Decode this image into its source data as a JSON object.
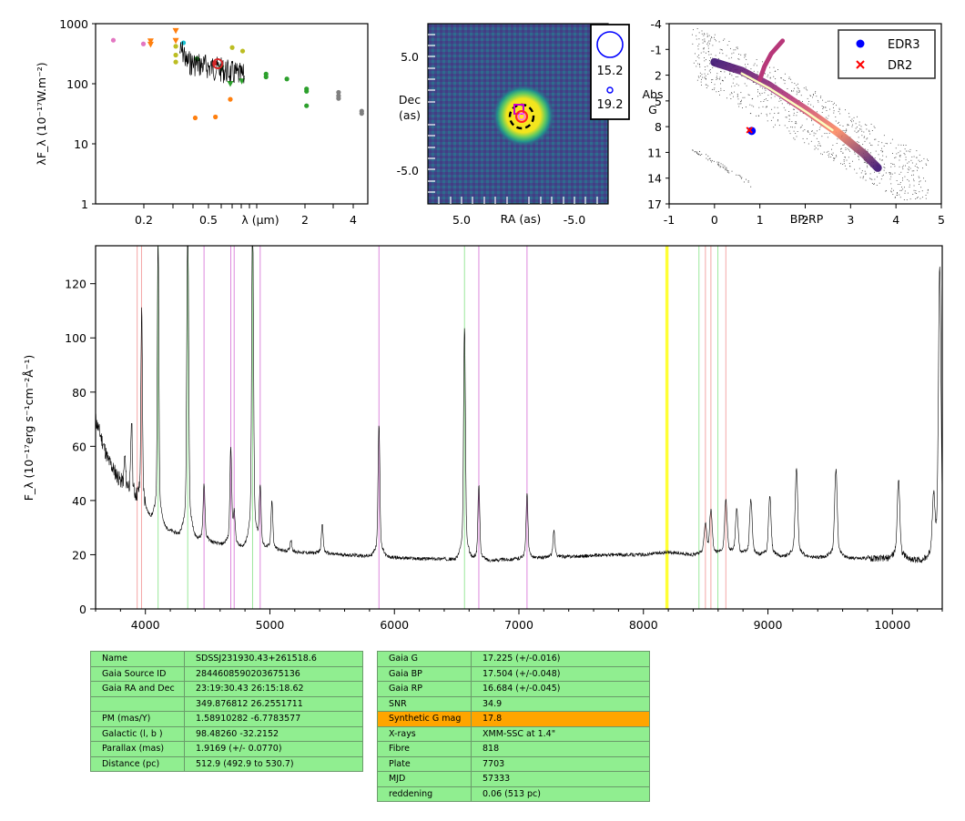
{
  "sed_panel": {
    "ylabel": "λF_λ (10⁻¹⁷W.m⁻²)",
    "xlabel": "λ (μm)",
    "y_ticks": [
      "1",
      "10",
      "100",
      "1000"
    ],
    "x_ticks": [
      "0.2",
      "0.5",
      "2",
      "4"
    ]
  },
  "image_panel": {
    "xlabel": "RA (as)",
    "ylabel_line1": "Dec",
    "ylabel_line2": "(as)",
    "x_ticks": [
      "5.0",
      "-5.0"
    ],
    "y_ticks": [
      "5.0",
      "-5.0"
    ],
    "mag_legend": [
      "15.2",
      "19.2"
    ]
  },
  "hr_panel": {
    "xlabel": "BP-RP",
    "ylabel_line1": "Abs",
    "ylabel_line2": "G",
    "x_ticks": [
      "-1",
      "0",
      "1",
      "2",
      "3",
      "4",
      "5"
    ],
    "y_ticks": [
      "-4",
      "-1",
      "2",
      "5",
      "8",
      "11",
      "14",
      "17"
    ],
    "legend": [
      {
        "label": "EDR3",
        "color": "#0000ff",
        "marker": "circle"
      },
      {
        "label": "DR2",
        "color": "#ff0000",
        "marker": "x"
      }
    ]
  },
  "spectrum_panel": {
    "ylabel": "F_λ (10⁻¹⁷erg s⁻¹cm⁻²Å⁻¹)",
    "x_ticks": [
      "4000",
      "5000",
      "6000",
      "7000",
      "8000",
      "9000",
      "10000"
    ],
    "y_ticks": [
      "0",
      "20",
      "40",
      "60",
      "80",
      "100",
      "120"
    ]
  },
  "colors": {
    "line_red": "#f4a6a6",
    "line_green": "#9be89b",
    "line_violet": "#dd88dd",
    "line_yellow": "#ffff33",
    "table_bg": "#90ee90",
    "table_hl": "#ffa500"
  },
  "chart_data": [
    {
      "type": "scatter",
      "xlabel": "λ (μm)",
      "ylabel": "λF_λ (10⁻¹⁷W.m⁻²)",
      "xscale": "log",
      "yscale": "log",
      "xlim": [
        0.12,
        5.0
      ],
      "ylim": [
        1,
        1000
      ],
      "points": [
        {
          "x": 0.153,
          "y": 530,
          "color": "#e377c2",
          "marker": "o"
        },
        {
          "x": 0.231,
          "y": 460,
          "color": "#e377c2",
          "marker": "o"
        },
        {
          "x": 0.255,
          "y": 510,
          "color": "#ff7f0e",
          "marker": "v"
        },
        {
          "x": 0.255,
          "y": 450,
          "color": "#ff7f0e",
          "marker": "v"
        },
        {
          "x": 0.36,
          "y": 760,
          "color": "#ff7f0e",
          "marker": "v"
        },
        {
          "x": 0.36,
          "y": 520,
          "color": "#ff7f0e",
          "marker": "v"
        },
        {
          "x": 0.36,
          "y": 420,
          "color": "#bcbd22",
          "marker": "o"
        },
        {
          "x": 0.36,
          "y": 300,
          "color": "#bcbd22",
          "marker": "o"
        },
        {
          "x": 0.36,
          "y": 230,
          "color": "#bcbd22",
          "marker": "o"
        },
        {
          "x": 0.4,
          "y": 480,
          "color": "#17becf",
          "marker": "o"
        },
        {
          "x": 0.47,
          "y": 27,
          "color": "#ff7f0e",
          "marker": "o"
        },
        {
          "x": 0.62,
          "y": 28,
          "color": "#ff7f0e",
          "marker": "o"
        },
        {
          "x": 0.48,
          "y": 260,
          "color": "#2ca02c",
          "marker": "o"
        },
        {
          "x": 0.62,
          "y": 220,
          "color": "#d62728",
          "marker": "o"
        },
        {
          "x": 0.67,
          "y": 180,
          "color": "#2ca02c",
          "marker": "v"
        },
        {
          "x": 0.76,
          "y": 55,
          "color": "#ff7f0e",
          "marker": "o"
        },
        {
          "x": 0.76,
          "y": 100,
          "color": "#2ca02c",
          "marker": "v"
        },
        {
          "x": 0.89,
          "y": 110,
          "color": "#2ca02c",
          "marker": "v"
        },
        {
          "x": 0.78,
          "y": 400,
          "color": "#bcbd22",
          "marker": "o"
        },
        {
          "x": 0.9,
          "y": 350,
          "color": "#bcbd22",
          "marker": "o"
        },
        {
          "x": 1.24,
          "y": 145,
          "color": "#2ca02c",
          "marker": "o"
        },
        {
          "x": 1.24,
          "y": 130,
          "color": "#2ca02c",
          "marker": "o"
        },
        {
          "x": 1.65,
          "y": 120,
          "color": "#2ca02c",
          "marker": "o"
        },
        {
          "x": 2.16,
          "y": 82,
          "color": "#2ca02c",
          "marker": "o"
        },
        {
          "x": 2.16,
          "y": 75,
          "color": "#2ca02c",
          "marker": "o"
        },
        {
          "x": 2.16,
          "y": 43,
          "color": "#2ca02c",
          "marker": "o"
        },
        {
          "x": 3.35,
          "y": 72,
          "color": "#7f7f7f",
          "marker": "o"
        },
        {
          "x": 3.35,
          "y": 63,
          "color": "#7f7f7f",
          "marker": "o"
        },
        {
          "x": 3.35,
          "y": 57,
          "color": "#7f7f7f",
          "marker": "o"
        },
        {
          "x": 4.6,
          "y": 35,
          "color": "#7f7f7f",
          "marker": "o"
        },
        {
          "x": 4.6,
          "y": 32,
          "color": "#7f7f7f",
          "marker": "o"
        }
      ],
      "spectrum_range_um": [
        0.38,
        0.92
      ]
    },
    {
      "type": "heatmap",
      "xlabel": "RA (as)",
      "ylabel": "Dec (as)",
      "xlim": [
        8.5,
        -8.5
      ],
      "ylim": [
        -8.5,
        8.5
      ],
      "source": {
        "x": 0.0,
        "y": 0.0
      },
      "mag_scale": [
        15.2,
        19.2
      ]
    },
    {
      "type": "scatter",
      "xlabel": "BP-RP",
      "ylabel": "Abs G",
      "xlim": [
        -1,
        5
      ],
      "ylim": [
        17,
        -4
      ],
      "series": [
        {
          "name": "EDR3",
          "color": "#0000ff",
          "points": [
            {
              "x": 0.82,
              "y": 8.5
            }
          ]
        },
        {
          "name": "DR2",
          "color": "#ff0000",
          "points": [
            {
              "x": 0.77,
              "y": 8.4
            }
          ]
        }
      ]
    },
    {
      "type": "line",
      "xlabel": "",
      "ylabel": "F_λ (10⁻¹⁷erg s⁻¹cm⁻²Å⁻¹)",
      "xlim": [
        3600,
        10400
      ],
      "ylim": [
        0,
        134
      ],
      "continuum": [
        [
          3600,
          70
        ],
        [
          3700,
          55
        ],
        [
          3800,
          47
        ],
        [
          3900,
          42
        ],
        [
          4000,
          36
        ],
        [
          4100,
          32
        ],
        [
          4200,
          29
        ],
        [
          4300,
          27
        ],
        [
          4400,
          26
        ],
        [
          4500,
          25
        ],
        [
          4600,
          24
        ],
        [
          4800,
          23
        ],
        [
          5000,
          22
        ],
        [
          5200,
          21
        ],
        [
          5400,
          20.5
        ],
        [
          5600,
          20
        ],
        [
          5800,
          19.5
        ],
        [
          6000,
          19
        ],
        [
          6200,
          18.5
        ],
        [
          6400,
          18.5
        ],
        [
          6600,
          18
        ],
        [
          6800,
          18
        ],
        [
          7000,
          18.5
        ],
        [
          7200,
          19
        ],
        [
          7500,
          19.5
        ],
        [
          7800,
          20
        ],
        [
          8000,
          20
        ],
        [
          8200,
          21
        ],
        [
          8400,
          20
        ],
        [
          8600,
          20
        ],
        [
          9000,
          19.5
        ],
        [
          9500,
          19
        ],
        [
          10000,
          18.5
        ],
        [
          10300,
          18
        ]
      ],
      "emission_lines": [
        [
          3835,
          55
        ],
        [
          3889,
          67
        ],
        [
          3970,
          104
        ],
        [
          4102,
          127
        ],
        [
          4340,
          134
        ],
        [
          4471,
          44
        ],
        [
          4686,
          55
        ],
        [
          4713,
          33
        ],
        [
          4861,
          134
        ],
        [
          4922,
          42
        ],
        [
          5016,
          38
        ],
        [
          5169,
          25
        ],
        [
          5420,
          30
        ],
        [
          5876,
          63
        ],
        [
          6563,
          95
        ],
        [
          6678,
          43
        ],
        [
          7065,
          40
        ],
        [
          7281,
          28
        ],
        [
          8498,
          30
        ],
        [
          8542,
          34
        ],
        [
          8662,
          38
        ],
        [
          8750,
          35
        ],
        [
          8863,
          38
        ],
        [
          9015,
          39
        ],
        [
          9229,
          48
        ],
        [
          9546,
          48
        ],
        [
          10049,
          45
        ],
        [
          10330,
          36
        ],
        [
          10380,
          114
        ]
      ],
      "marker_lines": [
        {
          "x": 3934,
          "color": "red"
        },
        {
          "x": 3969,
          "color": "red"
        },
        {
          "x": 4102,
          "color": "green"
        },
        {
          "x": 4340,
          "color": "green"
        },
        {
          "x": 4861,
          "color": "green"
        },
        {
          "x": 6563,
          "color": "green"
        },
        {
          "x": 4471,
          "color": "violet"
        },
        {
          "x": 4686,
          "color": "violet"
        },
        {
          "x": 4713,
          "color": "violet"
        },
        {
          "x": 4922,
          "color": "violet"
        },
        {
          "x": 5876,
          "color": "violet"
        },
        {
          "x": 6678,
          "color": "violet"
        },
        {
          "x": 7065,
          "color": "violet"
        },
        {
          "x": 8183,
          "color": "yellow"
        },
        {
          "x": 8195,
          "color": "yellow"
        },
        {
          "x": 8446,
          "color": "green"
        },
        {
          "x": 8598,
          "color": "green"
        },
        {
          "x": 8498,
          "color": "red"
        },
        {
          "x": 8542,
          "color": "red"
        },
        {
          "x": 8662,
          "color": "red"
        }
      ]
    }
  ],
  "info_table_left": [
    {
      "label": "Name",
      "value": "SDSSJ231930.43+261518.6"
    },
    {
      "label": "Gaia Source ID",
      "value": "2844608590203675136"
    },
    {
      "label": "Gaia RA and Dec",
      "value": "23:19:30.43    26:15:18.62"
    },
    {
      "label": "",
      "value": "349.876812    26.2551711"
    },
    {
      "label": "PM (mas/Y)",
      "value": "1.58910282    -6.7783577"
    },
    {
      "label": "Galactic (l, b )",
      "value": "98.48260    -32.2152"
    },
    {
      "label": "Parallax (mas)",
      "value": "1.9169 (+/- 0.0770)"
    },
    {
      "label": "Distance (pc)",
      "value": "512.9 (492.9 to 530.7)"
    }
  ],
  "info_table_right": [
    {
      "label": "Gaia G",
      "value": "17.225 (+/-0.016)"
    },
    {
      "label": "Gaia BP",
      "value": "17.504 (+/-0.048)"
    },
    {
      "label": "Gaia RP",
      "value": "16.684 (+/-0.045)"
    },
    {
      "label": "SNR",
      "value": "34.9"
    },
    {
      "label": "Synthetic G mag",
      "value": "17.8",
      "highlight": true
    },
    {
      "label": "X-rays",
      "value": "XMM-SSC at 1.4\""
    },
    {
      "label": "Fibre",
      "value": "818"
    },
    {
      "label": "Plate",
      "value": "7703"
    },
    {
      "label": "MJD",
      "value": "57333"
    },
    {
      "label": "reddening",
      "value": "0.06 (513 pc)"
    }
  ]
}
